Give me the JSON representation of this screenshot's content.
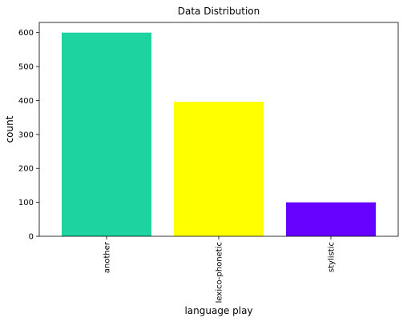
{
  "chart_data": {
    "type": "bar",
    "title": "Data Distribution",
    "xlabel": "language play",
    "ylabel": "count",
    "categories": [
      "another",
      "lexico-phonetic",
      "stylistic"
    ],
    "values": [
      600,
      396,
      100
    ],
    "colors": [
      "#1dd3a0",
      "#ffff00",
      "#6600ff"
    ],
    "ylim": [
      0,
      630
    ],
    "yticks": [
      0,
      100,
      200,
      300,
      400,
      500,
      600
    ],
    "grid": false,
    "legend": "none"
  }
}
